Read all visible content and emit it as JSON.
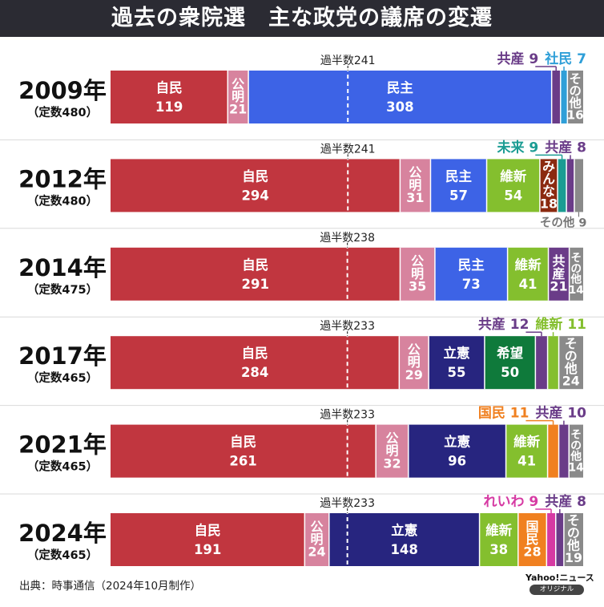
{
  "title": "過去の衆院選　主な政党の議席の変遷",
  "source": "出典：時事通信（2024年10月制作）",
  "logo": {
    "brand": "Yahoo!ニュース",
    "badge": "オリジナル"
  },
  "colors": {
    "自民": "#c1363f",
    "公明": "#d7839e",
    "民主": "#3d63e6",
    "立憲": "#27257f",
    "維新": "#84bf2e",
    "共産": "#6a3c88",
    "社民": "#2f9fd8",
    "未来": "#1b9c93",
    "みんな": "#8b2a10",
    "希望": "#0f7a3b",
    "国民": "#f08020",
    "れいわ": "#d63aa3",
    "その他": "#8a8a8a",
    "majority_line": "#ffffff",
    "divider": "#d9d9d9"
  },
  "chart_data": {
    "type": "bar",
    "orientation": "horizontal-stacked",
    "unit": "議席",
    "rows": [
      {
        "year": "2009年",
        "total_label": "（定数480）",
        "total": 480,
        "majority_label": "過半数241",
        "majority": 241,
        "segments": [
          {
            "party": "自民",
            "label": "自民",
            "value": 119,
            "text": "119",
            "label_pos": "inside"
          },
          {
            "party": "公明",
            "label": "公明",
            "value": 21,
            "text": "21",
            "label_pos": "vertical"
          },
          {
            "party": "民主",
            "label": "民主",
            "value": 308,
            "text": "308",
            "label_pos": "inside"
          },
          {
            "party": "共産",
            "label": "共産",
            "value": 9,
            "text": "9",
            "label_pos": "above"
          },
          {
            "party": "社民",
            "label": "社民",
            "value": 7,
            "text": "7",
            "label_pos": "above"
          },
          {
            "party": "その他",
            "label": "その他",
            "value": 16,
            "text": "16",
            "label_pos": "vertical"
          }
        ]
      },
      {
        "year": "2012年",
        "total_label": "（定数480）",
        "total": 480,
        "majority_label": "過半数241",
        "majority": 241,
        "segments": [
          {
            "party": "自民",
            "label": "自民",
            "value": 294,
            "text": "294",
            "label_pos": "inside"
          },
          {
            "party": "公明",
            "label": "公明",
            "value": 31,
            "text": "31",
            "label_pos": "vertical"
          },
          {
            "party": "民主",
            "label": "民主",
            "value": 57,
            "text": "57",
            "label_pos": "inside"
          },
          {
            "party": "維新",
            "label": "維新",
            "value": 54,
            "text": "54",
            "label_pos": "inside"
          },
          {
            "party": "みんな",
            "label": "みんな",
            "value": 18,
            "text": "18",
            "label_pos": "vertical"
          },
          {
            "party": "未来",
            "label": "未来",
            "value": 9,
            "text": "9",
            "label_pos": "above"
          },
          {
            "party": "共産",
            "label": "共産",
            "value": 8,
            "text": "8",
            "label_pos": "above"
          },
          {
            "party": "その他",
            "label": "その他",
            "value": 9,
            "text": "9",
            "label_pos": "below"
          }
        ]
      },
      {
        "year": "2014年",
        "total_label": "（定数475）",
        "total": 475,
        "majority_label": "過半数238",
        "majority": 238,
        "segments": [
          {
            "party": "自民",
            "label": "自民",
            "value": 291,
            "text": "291",
            "label_pos": "inside"
          },
          {
            "party": "公明",
            "label": "公明",
            "value": 35,
            "text": "35",
            "label_pos": "vertical"
          },
          {
            "party": "民主",
            "label": "民主",
            "value": 73,
            "text": "73",
            "label_pos": "inside"
          },
          {
            "party": "維新",
            "label": "維新",
            "value": 41,
            "text": "41",
            "label_pos": "inside"
          },
          {
            "party": "共産",
            "label": "共産",
            "value": 21,
            "text": "21",
            "label_pos": "vertical"
          },
          {
            "party": "その他",
            "label": "その他",
            "value": 14,
            "text": "14",
            "label_pos": "vertical"
          }
        ]
      },
      {
        "year": "2017年",
        "total_label": "（定数465）",
        "total": 465,
        "majority_label": "過半数233",
        "majority": 233,
        "segments": [
          {
            "party": "自民",
            "label": "自民",
            "value": 284,
            "text": "284",
            "label_pos": "inside"
          },
          {
            "party": "公明",
            "label": "公明",
            "value": 29,
            "text": "29",
            "label_pos": "vertical"
          },
          {
            "party": "立憲",
            "label": "立憲",
            "value": 55,
            "text": "55",
            "label_pos": "inside"
          },
          {
            "party": "希望",
            "label": "希望",
            "value": 50,
            "text": "50",
            "label_pos": "inside"
          },
          {
            "party": "共産",
            "label": "共産",
            "value": 12,
            "text": "12",
            "label_pos": "above"
          },
          {
            "party": "維新",
            "label": "維新",
            "value": 11,
            "text": "11",
            "label_pos": "above"
          },
          {
            "party": "その他",
            "label": "その他",
            "value": 24,
            "text": "24",
            "label_pos": "vertical"
          }
        ]
      },
      {
        "year": "2021年",
        "total_label": "（定数465）",
        "total": 465,
        "majority_label": "過半数233",
        "majority": 233,
        "segments": [
          {
            "party": "自民",
            "label": "自民",
            "value": 261,
            "text": "261",
            "label_pos": "inside"
          },
          {
            "party": "公明",
            "label": "公明",
            "value": 32,
            "text": "32",
            "label_pos": "vertical"
          },
          {
            "party": "立憲",
            "label": "立憲",
            "value": 96,
            "text": "96",
            "label_pos": "inside"
          },
          {
            "party": "維新",
            "label": "維新",
            "value": 41,
            "text": "41",
            "label_pos": "inside"
          },
          {
            "party": "国民",
            "label": "国民",
            "value": 11,
            "text": "11",
            "label_pos": "above"
          },
          {
            "party": "共産",
            "label": "共産",
            "value": 10,
            "text": "10",
            "label_pos": "above"
          },
          {
            "party": "その他",
            "label": "その他",
            "value": 14,
            "text": "14",
            "label_pos": "vertical"
          }
        ]
      },
      {
        "year": "2024年",
        "total_label": "（定数465）",
        "total": 465,
        "majority_label": "過半数233",
        "majority": 233,
        "segments": [
          {
            "party": "自民",
            "label": "自民",
            "value": 191,
            "text": "191",
            "label_pos": "inside"
          },
          {
            "party": "公明",
            "label": "公明",
            "value": 24,
            "text": "24",
            "label_pos": "vertical"
          },
          {
            "party": "立憲",
            "label": "立憲",
            "value": 148,
            "text": "148",
            "label_pos": "inside"
          },
          {
            "party": "維新",
            "label": "維新",
            "value": 38,
            "text": "38",
            "label_pos": "inside"
          },
          {
            "party": "国民",
            "label": "国民",
            "value": 28,
            "text": "28",
            "label_pos": "vertical"
          },
          {
            "party": "れいわ",
            "label": "れいわ",
            "value": 9,
            "text": "9",
            "label_pos": "above"
          },
          {
            "party": "共産",
            "label": "共産",
            "value": 8,
            "text": "8",
            "label_pos": "above"
          },
          {
            "party": "その他",
            "label": "その他",
            "value": 19,
            "text": "19",
            "label_pos": "vertical"
          }
        ]
      }
    ]
  }
}
